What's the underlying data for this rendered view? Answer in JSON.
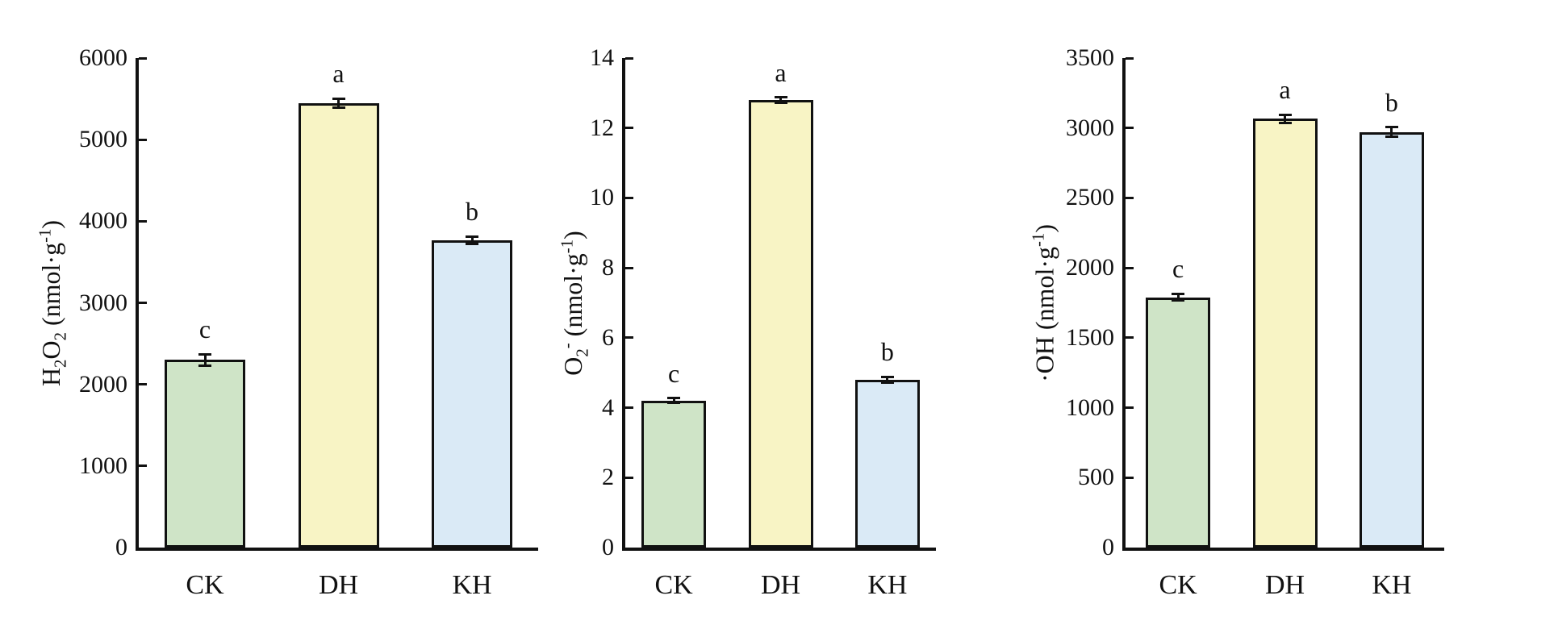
{
  "figure": {
    "background": "#ffffff",
    "axis_color": "#111111",
    "error_bar_color": "#111111"
  },
  "chart_data": [
    {
      "id": "h2o2",
      "type": "bar",
      "title": "",
      "ylabel_html": "H<sub>2</sub>O<sub>2</sub> (nmol·g<sup>-1</sup>)",
      "ylabel_text": "H2O2 (nmol·g⁻¹)",
      "xlabel": "",
      "ylim": [
        0,
        6000
      ],
      "yticks": [
        0,
        1000,
        2000,
        3000,
        4000,
        5000,
        6000
      ],
      "legend": "none",
      "grid": false,
      "categories": [
        "CK",
        "DH",
        "KH"
      ],
      "values": [
        2300,
        5450,
        3770
      ],
      "errors": [
        70,
        55,
        45
      ],
      "sig_letters": [
        "c",
        "a",
        "b"
      ],
      "bar_colors": [
        "#cfe4c7",
        "#f8f4c5",
        "#daeaf6"
      ]
    },
    {
      "id": "o2",
      "type": "bar",
      "title": "",
      "ylabel_html": "O<sub>2</sub><sup>-</sup> (nmol·g<sup>-1</sup>)",
      "ylabel_text": "O2⁻ (nmol·g⁻¹)",
      "xlabel": "",
      "ylim": [
        0,
        14
      ],
      "yticks": [
        0,
        2,
        4,
        6,
        8,
        10,
        12,
        14
      ],
      "legend": "none",
      "grid": false,
      "categories": [
        "CK",
        "DH",
        "KH"
      ],
      "values": [
        4.2,
        12.8,
        4.8
      ],
      "errors": [
        0.07,
        0.07,
        0.08
      ],
      "sig_letters": [
        "c",
        "a",
        "b"
      ],
      "bar_colors": [
        "#cfe4c7",
        "#f8f4c5",
        "#daeaf6"
      ]
    },
    {
      "id": "oh",
      "type": "bar",
      "title": "",
      "ylabel_html": "·OH (nmol·g<sup>-1</sup>)",
      "ylabel_text": "·OH (nmol·g⁻¹)",
      "xlabel": "",
      "ylim": [
        0,
        3500
      ],
      "yticks": [
        0,
        500,
        1000,
        1500,
        2000,
        2500,
        3000,
        3500
      ],
      "legend": "none",
      "grid": false,
      "categories": [
        "CK",
        "DH",
        "KH"
      ],
      "values": [
        1790,
        3065,
        2970
      ],
      "errors": [
        25,
        30,
        35
      ],
      "sig_letters": [
        "c",
        "a",
        "b"
      ],
      "bar_colors": [
        "#cfe4c7",
        "#f8f4c5",
        "#daeaf6"
      ]
    }
  ]
}
